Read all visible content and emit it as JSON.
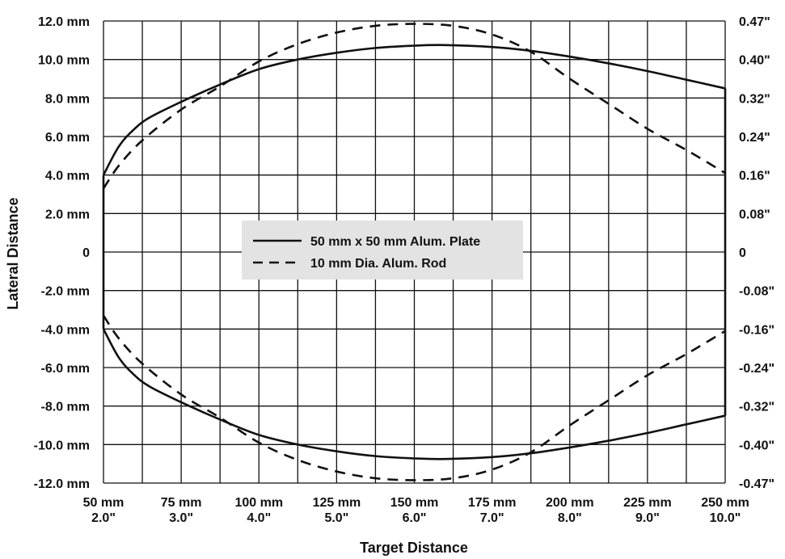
{
  "chart_data": {
    "type": "line",
    "title": "",
    "xlabel": "Target Distance",
    "ylabel": "Lateral Distance",
    "xlim": [
      50,
      250
    ],
    "ylim": [
      -12,
      12
    ],
    "grid": true,
    "legend_position": "center",
    "x_ticks": [
      {
        "value": 50,
        "label_mm": "50 mm",
        "label_in": "2.0\""
      },
      {
        "value": 75,
        "label_mm": "75 mm",
        "label_in": "3.0\""
      },
      {
        "value": 100,
        "label_mm": "100 mm",
        "label_in": "4.0\""
      },
      {
        "value": 125,
        "label_mm": "125 mm",
        "label_in": "5.0\""
      },
      {
        "value": 150,
        "label_mm": "150 mm",
        "label_in": "6.0\""
      },
      {
        "value": 175,
        "label_mm": "175 mm",
        "label_in": "7.0\""
      },
      {
        "value": 200,
        "label_mm": "200 mm",
        "label_in": "8.0\""
      },
      {
        "value": 225,
        "label_mm": "225 mm",
        "label_in": "9.0\""
      },
      {
        "value": 250,
        "label_mm": "250 mm",
        "label_in": "10.0\""
      }
    ],
    "y_ticks_left": [
      {
        "value": 12,
        "label": "12.0 mm"
      },
      {
        "value": 10,
        "label": "10.0 mm"
      },
      {
        "value": 8,
        "label": "8.0 mm"
      },
      {
        "value": 6,
        "label": "6.0 mm"
      },
      {
        "value": 4,
        "label": "4.0 mm"
      },
      {
        "value": 2,
        "label": "2.0 mm"
      },
      {
        "value": 0,
        "label": "0"
      },
      {
        "value": -2,
        "label": "-2.0 mm"
      },
      {
        "value": -4,
        "label": "-4.0 mm"
      },
      {
        "value": -6,
        "label": "-6.0 mm"
      },
      {
        "value": -8,
        "label": "-8.0 mm"
      },
      {
        "value": -10,
        "label": "-10.0 mm"
      },
      {
        "value": -12,
        "label": "-12.0 mm"
      }
    ],
    "y_ticks_right": [
      {
        "value": 12,
        "label": "0.47\""
      },
      {
        "value": 10,
        "label": "0.40\""
      },
      {
        "value": 8,
        "label": "0.32\""
      },
      {
        "value": 6,
        "label": "0.24\""
      },
      {
        "value": 4,
        "label": "0.16\""
      },
      {
        "value": 2,
        "label": "0.08\""
      },
      {
        "value": 0,
        "label": "0"
      },
      {
        "value": -2,
        "label": "-0.08\""
      },
      {
        "value": -4,
        "label": "-0.16\""
      },
      {
        "value": -6,
        "label": "-0.24\""
      },
      {
        "value": -8,
        "label": "-0.32\""
      },
      {
        "value": -10,
        "label": "-0.40\""
      },
      {
        "value": -12,
        "label": "-0.47\""
      }
    ],
    "series": [
      {
        "name": "50 mm x 50 mm Alum. Plate",
        "style": "solid",
        "color": "#111111",
        "closed": true,
        "x": [
          50,
          55,
          60,
          65,
          75,
          87.5,
          100,
          112.5,
          125,
          137.5,
          150,
          160,
          175,
          187.5,
          200,
          212.5,
          225,
          237.5,
          250
        ],
        "upper": [
          4.0,
          5.5,
          6.4,
          7.0,
          7.8,
          8.7,
          9.5,
          10.0,
          10.35,
          10.6,
          10.72,
          10.75,
          10.65,
          10.45,
          10.15,
          9.8,
          9.4,
          8.95,
          8.5
        ],
        "lower": [
          -4.0,
          -5.5,
          -6.4,
          -7.0,
          -7.8,
          -8.7,
          -9.5,
          -10.0,
          -10.35,
          -10.6,
          -10.72,
          -10.75,
          -10.65,
          -10.45,
          -10.15,
          -9.8,
          -9.4,
          -8.95,
          -8.5
        ]
      },
      {
        "name": "10 mm Dia. Alum. Rod",
        "style": "dashed",
        "color": "#111111",
        "closed": false,
        "x": [
          50,
          55,
          62.5,
          75,
          87.5,
          100,
          112.5,
          125,
          137.5,
          150,
          162.5,
          175,
          187.5,
          200,
          212.5,
          225,
          237.5,
          250
        ],
        "upper": [
          3.3,
          4.5,
          5.8,
          7.4,
          8.6,
          9.9,
          10.8,
          11.4,
          11.75,
          11.85,
          11.75,
          11.3,
          10.4,
          9.0,
          7.7,
          6.4,
          5.3,
          4.1
        ],
        "lower": [
          -3.3,
          -4.5,
          -5.8,
          -7.4,
          -8.6,
          -9.9,
          -10.8,
          -11.4,
          -11.75,
          -11.85,
          -11.75,
          -11.3,
          -10.4,
          -9.0,
          -7.7,
          -6.4,
          -5.3,
          -4.1
        ]
      }
    ]
  }
}
